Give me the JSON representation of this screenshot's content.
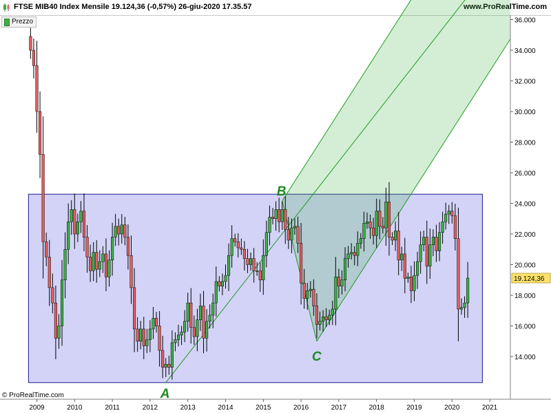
{
  "header": {
    "title": "FTSE MIB40 Index Mensile 19.124,36 (-0,57%) 26-giu-2020 17.35.57",
    "site": "www.ProRealTime.com"
  },
  "legend": {
    "label": "Prezzo"
  },
  "credit": "© ProRealTime.com",
  "colors": {
    "up": "#3cb043",
    "down": "#e0605f",
    "channel": "#1f9a1f",
    "box": "#1a1a8c",
    "price_tag": "#ffe26b"
  },
  "chart_data": {
    "type": "candlestick",
    "title": "FTSE MIB40 Index Mensile",
    "last_price_label": "19.124,36",
    "y_ticks": [
      14000,
      16000,
      18000,
      20000,
      22000,
      24000,
      26000,
      28000,
      30000,
      32000,
      34000,
      36000
    ],
    "y_tick_labels": [
      "14.000",
      "16.000",
      "18.000",
      "20.000",
      "22.000",
      "24.000",
      "26.000",
      "28.000",
      "30.000",
      "32.000",
      "34.000",
      "36.000"
    ],
    "x_ticks": [
      "2009",
      "2010",
      "2011",
      "2012",
      "2013",
      "2014",
      "2015",
      "2016",
      "2017",
      "2018",
      "2019",
      "2020",
      "2021"
    ],
    "x_range": [
      "2008-10",
      "2021-08"
    ],
    "anchor_points": [
      {
        "label": "A",
        "date": "2012-06",
        "value": 12300
      },
      {
        "label": "B",
        "date": "2015-07",
        "value": 24160
      },
      {
        "label": "C",
        "date": "2016-06",
        "value": 15000
      }
    ],
    "range_box": {
      "from": "2008-11",
      "to": "2020-10",
      "low": 12300,
      "high": 24600
    },
    "closes": [
      {
        "d": "2008-11",
        "c": 34000
      },
      {
        "d": "2008-12",
        "c": 33000
      },
      {
        "d": "2009-01",
        "c": 30000
      },
      {
        "d": "2009-02",
        "c": 27200
      },
      {
        "d": "2009-03",
        "c": 21500
      },
      {
        "d": "2009-04",
        "c": 20500
      },
      {
        "d": "2009-05",
        "c": 18500
      },
      {
        "d": "2009-06",
        "c": 17500
      },
      {
        "d": "2009-07",
        "c": 15200
      },
      {
        "d": "2009-08",
        "c": 16000
      },
      {
        "d": "2009-09",
        "c": 19000
      },
      {
        "d": "2009-10",
        "c": 21000
      },
      {
        "d": "2009-11",
        "c": 22800
      },
      {
        "d": "2009-12",
        "c": 23600
      },
      {
        "d": "2010-01",
        "c": 22000
      },
      {
        "d": "2010-02",
        "c": 22800
      },
      {
        "d": "2010-03",
        "c": 23500
      },
      {
        "d": "2010-04",
        "c": 21800
      },
      {
        "d": "2010-05",
        "c": 20500
      },
      {
        "d": "2010-06",
        "c": 19600
      },
      {
        "d": "2010-07",
        "c": 20800
      },
      {
        "d": "2010-08",
        "c": 19700
      },
      {
        "d": "2010-09",
        "c": 20200
      },
      {
        "d": "2010-10",
        "c": 20700
      },
      {
        "d": "2010-11",
        "c": 19200
      },
      {
        "d": "2010-12",
        "c": 20300
      },
      {
        "d": "2011-01",
        "c": 21800
      },
      {
        "d": "2011-02",
        "c": 22500
      },
      {
        "d": "2011-03",
        "c": 22000
      },
      {
        "d": "2011-04",
        "c": 22600
      },
      {
        "d": "2011-05",
        "c": 21800
      },
      {
        "d": "2011-06",
        "c": 20600
      },
      {
        "d": "2011-07",
        "c": 18500
      },
      {
        "d": "2011-08",
        "c": 15800
      },
      {
        "d": "2011-09",
        "c": 15000
      },
      {
        "d": "2011-10",
        "c": 15800
      },
      {
        "d": "2011-11",
        "c": 14700
      },
      {
        "d": "2011-12",
        "c": 15100
      },
      {
        "d": "2012-01",
        "c": 15800
      },
      {
        "d": "2012-02",
        "c": 16500
      },
      {
        "d": "2012-03",
        "c": 16000
      },
      {
        "d": "2012-04",
        "c": 14400
      },
      {
        "d": "2012-05",
        "c": 13300
      },
      {
        "d": "2012-06",
        "c": 13500
      },
      {
        "d": "2012-07",
        "c": 13300
      },
      {
        "d": "2012-08",
        "c": 14900
      },
      {
        "d": "2012-09",
        "c": 15100
      },
      {
        "d": "2012-10",
        "c": 15400
      },
      {
        "d": "2012-11",
        "c": 15600
      },
      {
        "d": "2012-12",
        "c": 16300
      },
      {
        "d": "2013-01",
        "c": 17500
      },
      {
        "d": "2013-02",
        "c": 15900
      },
      {
        "d": "2013-03",
        "c": 15300
      },
      {
        "d": "2013-04",
        "c": 16400
      },
      {
        "d": "2013-05",
        "c": 17300
      },
      {
        "d": "2013-06",
        "c": 15200
      },
      {
        "d": "2013-07",
        "c": 16300
      },
      {
        "d": "2013-08",
        "c": 16700
      },
      {
        "d": "2013-09",
        "c": 17500
      },
      {
        "d": "2013-10",
        "c": 18900
      },
      {
        "d": "2013-11",
        "c": 18600
      },
      {
        "d": "2013-12",
        "c": 18900
      },
      {
        "d": "2014-01",
        "c": 19300
      },
      {
        "d": "2014-02",
        "c": 20600
      },
      {
        "d": "2014-03",
        "c": 21700
      },
      {
        "d": "2014-04",
        "c": 21500
      },
      {
        "d": "2014-05",
        "c": 21100
      },
      {
        "d": "2014-06",
        "c": 21000
      },
      {
        "d": "2014-07",
        "c": 20400
      },
      {
        "d": "2014-08",
        "c": 20000
      },
      {
        "d": "2014-09",
        "c": 20400
      },
      {
        "d": "2014-10",
        "c": 19600
      },
      {
        "d": "2014-11",
        "c": 19600
      },
      {
        "d": "2014-12",
        "c": 19000
      },
      {
        "d": "2015-01",
        "c": 20600
      },
      {
        "d": "2015-02",
        "c": 22100
      },
      {
        "d": "2015-03",
        "c": 23100
      },
      {
        "d": "2015-04",
        "c": 23000
      },
      {
        "d": "2015-05",
        "c": 23600
      },
      {
        "d": "2015-06",
        "c": 22800
      },
      {
        "d": "2015-07",
        "c": 23600
      },
      {
        "d": "2015-08",
        "c": 22300
      },
      {
        "d": "2015-09",
        "c": 21600
      },
      {
        "d": "2015-10",
        "c": 22400
      },
      {
        "d": "2015-11",
        "c": 22500
      },
      {
        "d": "2015-12",
        "c": 21400
      },
      {
        "d": "2016-01",
        "c": 18800
      },
      {
        "d": "2016-02",
        "c": 17800
      },
      {
        "d": "2016-03",
        "c": 18300
      },
      {
        "d": "2016-04",
        "c": 18400
      },
      {
        "d": "2016-05",
        "c": 17300
      },
      {
        "d": "2016-06",
        "c": 16100
      },
      {
        "d": "2016-07",
        "c": 16300
      },
      {
        "d": "2016-08",
        "c": 16600
      },
      {
        "d": "2016-09",
        "c": 16400
      },
      {
        "d": "2016-10",
        "c": 16700
      },
      {
        "d": "2016-11",
        "c": 17100
      },
      {
        "d": "2016-12",
        "c": 19200
      },
      {
        "d": "2017-01",
        "c": 18600
      },
      {
        "d": "2017-02",
        "c": 19000
      },
      {
        "d": "2017-03",
        "c": 20400
      },
      {
        "d": "2017-04",
        "c": 20700
      },
      {
        "d": "2017-05",
        "c": 20800
      },
      {
        "d": "2017-06",
        "c": 20600
      },
      {
        "d": "2017-07",
        "c": 21400
      },
      {
        "d": "2017-08",
        "c": 21700
      },
      {
        "d": "2017-09",
        "c": 22700
      },
      {
        "d": "2017-10",
        "c": 22800
      },
      {
        "d": "2017-11",
        "c": 22400
      },
      {
        "d": "2017-12",
        "c": 21900
      },
      {
        "d": "2018-01",
        "c": 23500
      },
      {
        "d": "2018-02",
        "c": 22500
      },
      {
        "d": "2018-03",
        "c": 22400
      },
      {
        "d": "2018-04",
        "c": 24100
      },
      {
        "d": "2018-05",
        "c": 21800
      },
      {
        "d": "2018-06",
        "c": 21600
      },
      {
        "d": "2018-07",
        "c": 22200
      },
      {
        "d": "2018-08",
        "c": 20300
      },
      {
        "d": "2018-09",
        "c": 20700
      },
      {
        "d": "2018-10",
        "c": 19100
      },
      {
        "d": "2018-11",
        "c": 19200
      },
      {
        "d": "2018-12",
        "c": 18300
      },
      {
        "d": "2019-01",
        "c": 19300
      },
      {
        "d": "2019-02",
        "c": 20200
      },
      {
        "d": "2019-03",
        "c": 21300
      },
      {
        "d": "2019-04",
        "c": 21800
      },
      {
        "d": "2019-05",
        "c": 19900
      },
      {
        "d": "2019-06",
        "c": 21300
      },
      {
        "d": "2019-07",
        "c": 21800
      },
      {
        "d": "2019-08",
        "c": 20900
      },
      {
        "d": "2019-09",
        "c": 22100
      },
      {
        "d": "2019-10",
        "c": 22800
      },
      {
        "d": "2019-11",
        "c": 23300
      },
      {
        "d": "2019-12",
        "c": 23500
      },
      {
        "d": "2020-01",
        "c": 23200
      },
      {
        "d": "2020-02",
        "c": 21700
      },
      {
        "d": "2020-03",
        "c": 17100
      },
      {
        "d": "2020-04",
        "c": 17200
      },
      {
        "d": "2020-05",
        "c": 17500
      },
      {
        "d": "2020-06",
        "c": 19124
      }
    ]
  }
}
